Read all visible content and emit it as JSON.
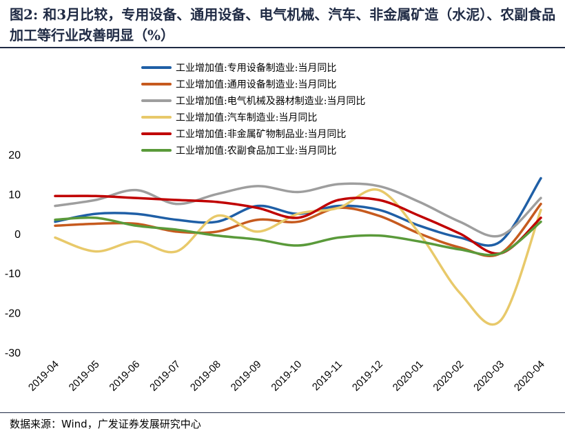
{
  "title": {
    "prefix": "图2:",
    "text": "和3月比较，专用设备、通用设备、电气机械、汽车、非金属矿造（水泥）、农副食品加工等行业改善明显（%）"
  },
  "source": "数据来源：Wind，广发证券发展研究中心",
  "chart_data": {
    "type": "line",
    "categories": [
      "2019-04",
      "2019-05",
      "2019-06",
      "2019-07",
      "2019-08",
      "2019-09",
      "2019-10",
      "2019-11",
      "2019-12",
      "2020-01",
      "2020-02",
      "2020-03",
      "2020-04"
    ],
    "ylim": [
      -30,
      20
    ],
    "yticks": [
      "20",
      "10",
      "0",
      "-10",
      "-20",
      "-30"
    ],
    "ytick_values": [
      20,
      10,
      0,
      -10,
      -20,
      -30
    ],
    "series": [
      {
        "name": "工业增加值:专用设备制造业:当月同比",
        "color": "#1f5fa6",
        "values": [
          3,
          5,
          5,
          3.5,
          3,
          7,
          5,
          7,
          6,
          2,
          -1,
          -2,
          14
        ]
      },
      {
        "name": "工业增加值:通用设备制造业:当月同比",
        "color": "#c65a1e",
        "values": [
          2,
          2.5,
          2.5,
          0.5,
          0.5,
          3.5,
          3,
          6.5,
          4.5,
          0,
          -3.5,
          -5,
          7.5
        ]
      },
      {
        "name": "工业增加值:电气机械及器材制造业:当月同比",
        "color": "#9e9e9e",
        "values": [
          7,
          8.5,
          11,
          7.5,
          10,
          12,
          10.5,
          12.5,
          12,
          8,
          3,
          -0.5,
          9
        ]
      },
      {
        "name": "工业增加值:汽车制造业:当月同比",
        "color": "#e8c96a",
        "values": [
          -1,
          -4.5,
          -2,
          -4.5,
          4.5,
          0.5,
          5,
          6.5,
          11,
          0,
          -15,
          -22,
          6
        ]
      },
      {
        "name": "工业增加值:非金属矿物制品业:当月同比",
        "color": "#c00000",
        "values": [
          9.5,
          9.5,
          9,
          8.5,
          8,
          6.5,
          4,
          8.5,
          8.5,
          4.5,
          0,
          -5,
          4
        ]
      },
      {
        "name": "工业增加值:农副食品加工业:当月同比",
        "color": "#5a9a3a",
        "values": [
          3.5,
          4,
          2,
          1,
          -0.5,
          -1.5,
          -3,
          -1,
          -0.5,
          -2,
          -4,
          -5,
          3
        ]
      }
    ]
  }
}
